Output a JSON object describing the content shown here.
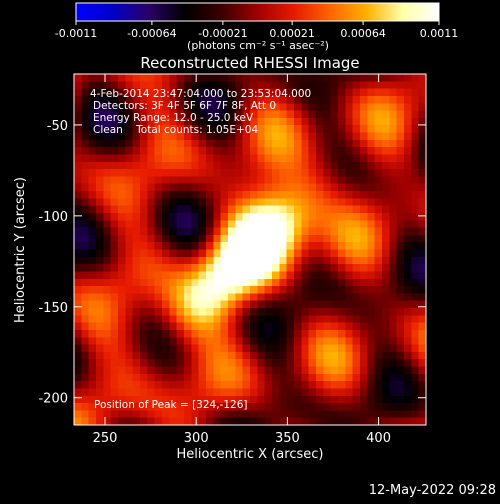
{
  "chart_data": {
    "type": "heatmap",
    "title": "Reconstructed RHESSI Image",
    "xlabel": "Heliocentric X (arcsec)",
    "ylabel": "Heliocentric Y (arcsec)",
    "xlim": [
      233,
      426
    ],
    "ylim": [
      -215,
      -22
    ],
    "x_ticks": [
      250,
      300,
      350,
      400
    ],
    "y_ticks": [
      -50,
      -100,
      -150,
      -200
    ],
    "colorbar": {
      "range": [
        -0.0011,
        0.0011
      ],
      "ticks": [
        "-0.0011",
        "-0.00064",
        "-0.00021",
        "0.00021",
        "0.00064",
        "0.0011"
      ],
      "unit_label": "(photons cm⁻² s⁻¹ asec⁻²)",
      "colormap": [
        "#0000ff",
        "#0000c8",
        "#2a0066",
        "#000000",
        "#3a0000",
        "#a00000",
        "#e61a00",
        "#ff6400",
        "#ffb000",
        "#ffffaa",
        "#ffffff"
      ]
    },
    "annotations": [
      "4-Feb-2014 23:47:04.000 to 23:53:04.000",
      "Detectors: 3F 4F 5F 6F 7F 8F, Att 0",
      "Energy Range: 12.0 - 25.0 keV",
      "Clean    Total counts: 1.05E+04",
      "Position of Peak = [324,-126]"
    ],
    "peak": [
      324,
      -126
    ]
  },
  "footer": {
    "timestamp": "12-May-2022 09:28"
  }
}
